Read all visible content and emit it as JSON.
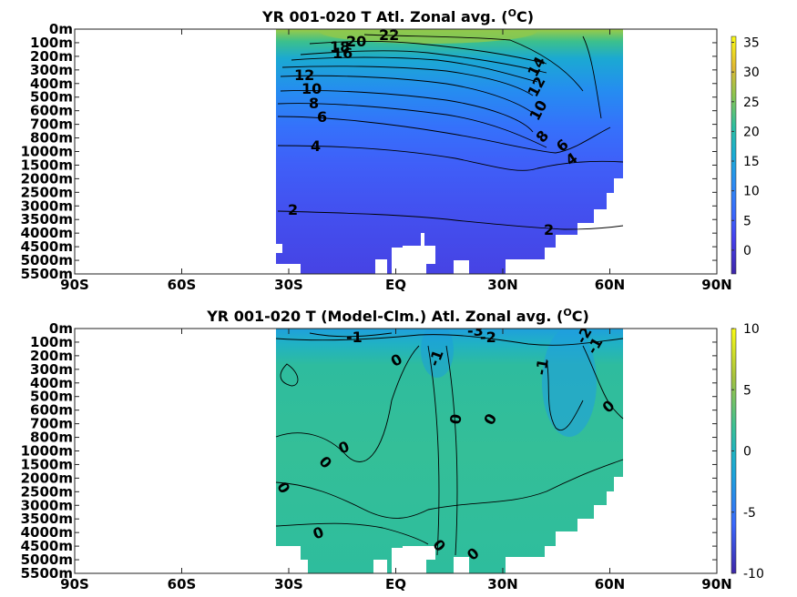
{
  "chart_data": [
    {
      "type": "heatmap",
      "title": "YR 001-020 T Atl. Zonal avg. (",
      "title_sup": "O",
      "title_tail": "C)",
      "x_ticks": [
        "90S",
        "60S",
        "30S",
        "EQ",
        "30N",
        "60N",
        "90N"
      ],
      "x_values": [
        -90,
        -60,
        -30,
        0,
        30,
        60,
        90
      ],
      "y_ticks": [
        "0m",
        "100m",
        "200m",
        "300m",
        "400m",
        "500m",
        "600m",
        "700m",
        "800m",
        "1000m",
        "1500m",
        "2000m",
        "2500m",
        "3000m",
        "3500m",
        "4000m",
        "4500m",
        "5000m",
        "5500m"
      ],
      "data_lat_range": [
        -34,
        64
      ],
      "colorbar": {
        "ticks": [
          "35",
          "30",
          "25",
          "20",
          "15",
          "10",
          "5",
          "0"
        ],
        "range": [
          -4,
          36
        ]
      },
      "contour_labels": [
        "22",
        "20",
        "18",
        "16",
        "14",
        "12",
        "12",
        "10",
        "10",
        "8",
        "8",
        "6",
        "6",
        "4",
        "4",
        "2",
        "2"
      ]
    },
    {
      "type": "heatmap",
      "title": "YR 001-020 T (Model-Clm.) Atl. Zonal avg. (",
      "title_sup": "O",
      "title_tail": "C)",
      "x_ticks": [
        "90S",
        "60S",
        "30S",
        "EQ",
        "30N",
        "60N",
        "90N"
      ],
      "x_values": [
        -90,
        -60,
        -30,
        0,
        30,
        60,
        90
      ],
      "y_ticks": [
        "0m",
        "100m",
        "200m",
        "300m",
        "400m",
        "500m",
        "600m",
        "700m",
        "800m",
        "1000m",
        "1500m",
        "2000m",
        "2500m",
        "3000m",
        "3500m",
        "4000m",
        "4500m",
        "5000m",
        "5500m"
      ],
      "data_lat_range": [
        -34,
        64
      ],
      "colorbar": {
        "ticks": [
          "10",
          "5",
          "0",
          "-5",
          "-10"
        ],
        "range": [
          -10,
          10
        ]
      },
      "contour_labels": [
        "-3",
        "-2",
        "-1",
        "-1",
        "-1",
        "-2",
        "-1",
        "0",
        "0",
        "0",
        "0",
        "0",
        "0",
        "0",
        "0",
        "0",
        "0"
      ]
    }
  ]
}
